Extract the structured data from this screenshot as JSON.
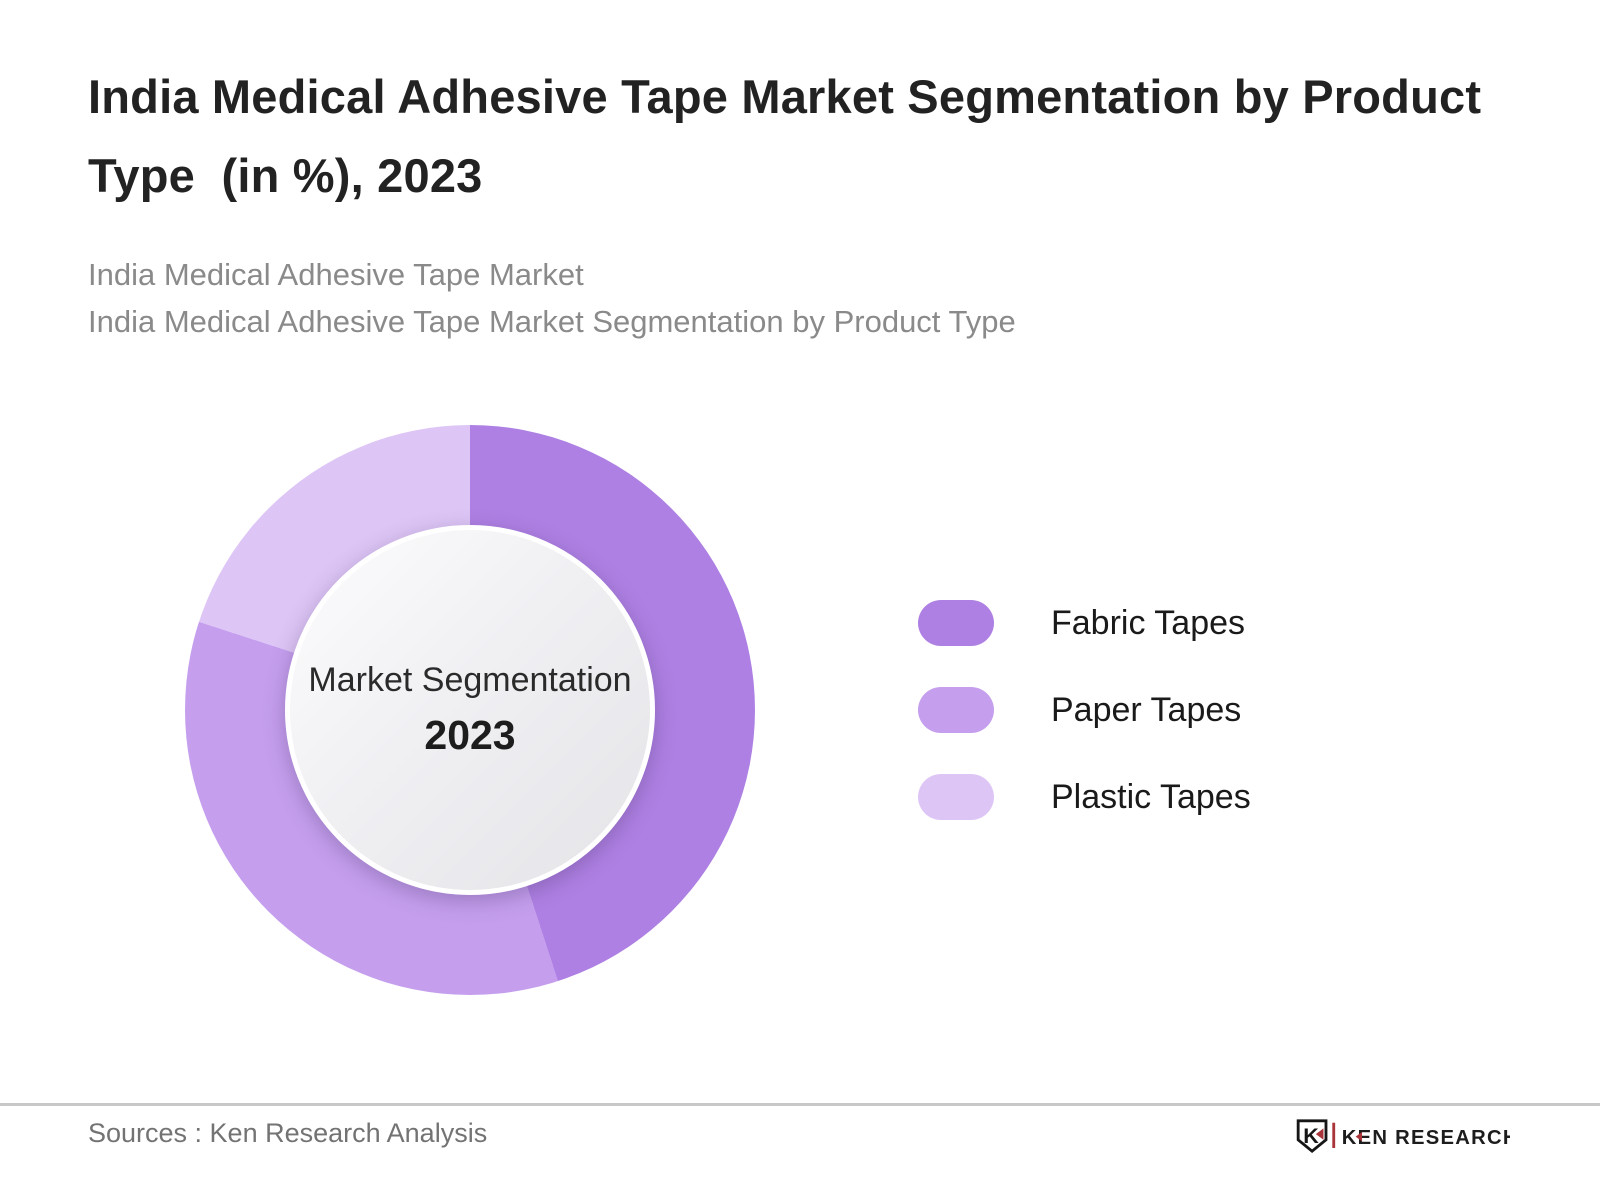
{
  "header": {
    "title": "India Medical Adhesive Tape Market Segmentation by Product Type  (in %), 2023",
    "subtitle_line1": "India Medical Adhesive Tape Market",
    "subtitle_line2": "India Medical Adhesive Tape Market Segmentation by Product Type"
  },
  "chart_data": {
    "type": "pie",
    "variant": "donut",
    "title": "India Medical Adhesive Tape Market Segmentation by Product Type  (in %), 2023",
    "categories": [
      "Fabric Tapes",
      "Paper Tapes",
      "Plastic Tapes"
    ],
    "values": [
      45,
      35,
      20
    ],
    "unit": "%",
    "colors": [
      "#ae80e3",
      "#c59fee",
      "#ddc6f6"
    ],
    "start_angle_deg": 0,
    "direction": "clockwise",
    "legend_position": "right",
    "data_labels_shown": false,
    "center_label": "Market Segmentation",
    "center_year": "2023"
  },
  "footer": {
    "source": "Sources : Ken Research Analysis",
    "logo": {
      "shield_letter": "K",
      "brand_text": "KEN RESEARCH",
      "accent_color": "#a93439",
      "text_color": "#1d1d1d"
    }
  }
}
